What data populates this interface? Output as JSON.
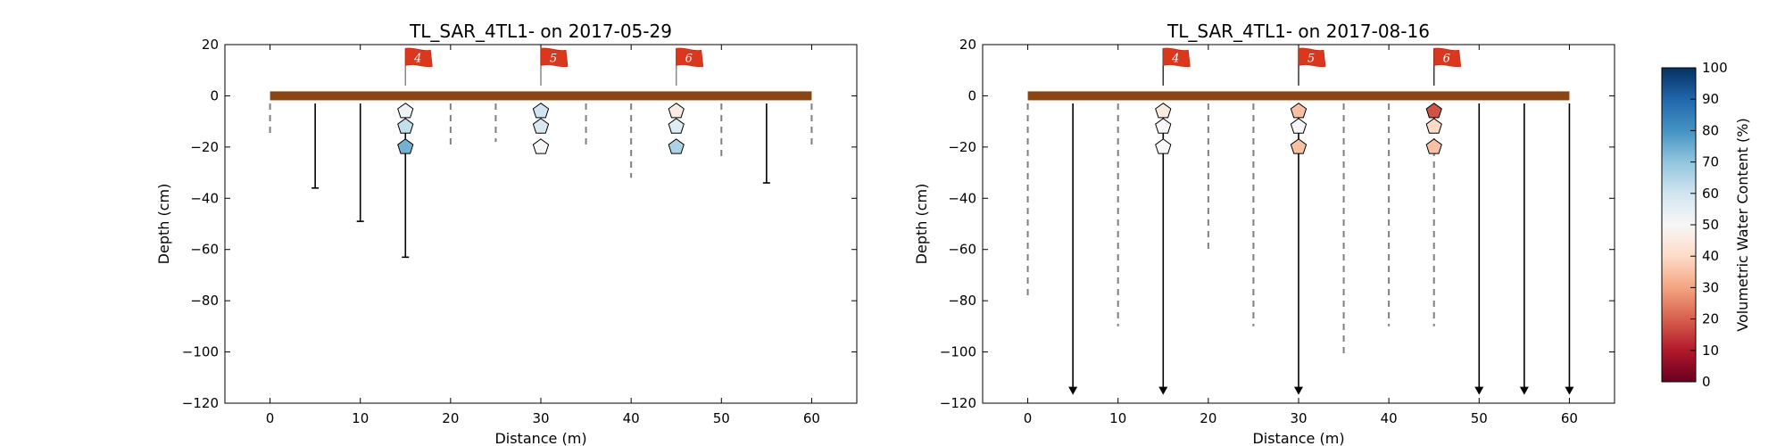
{
  "chart_data": [
    {
      "type": "scatter",
      "title": "TL_SAR_4TL1-  on 2017-05-29",
      "xlabel": "Distance (m)",
      "ylabel": "Depth (cm)",
      "xlim": [
        -5,
        65
      ],
      "ylim": [
        -120,
        20
      ],
      "xticks": [
        "0",
        "10",
        "20",
        "30",
        "40",
        "50",
        "60"
      ],
      "yticks": [
        "20",
        "0",
        "−20",
        "−40",
        "−60",
        "−80",
        "−100",
        "−120"
      ],
      "surface": {
        "x_start": 0,
        "x_end": 60,
        "depth": 0,
        "color": "#8B4513"
      },
      "flags": [
        {
          "x": 15,
          "label": "4"
        },
        {
          "x": 30,
          "label": "5"
        },
        {
          "x": 45,
          "label": "6"
        }
      ],
      "dashed_probes": [
        {
          "x": 0,
          "depth": -15
        },
        {
          "x": 20,
          "depth": -21
        },
        {
          "x": 25,
          "depth": -18
        },
        {
          "x": 35,
          "depth": -21
        },
        {
          "x": 40,
          "depth": -32
        },
        {
          "x": 50,
          "depth": -24
        },
        {
          "x": 60,
          "depth": -21
        }
      ],
      "solid_probes": [
        {
          "x": 5,
          "depth": -36,
          "arrow": false
        },
        {
          "x": 10,
          "depth": -49,
          "arrow": false
        },
        {
          "x": 15,
          "depth": -63,
          "arrow": false
        },
        {
          "x": 55,
          "depth": -34,
          "arrow": false
        }
      ],
      "moisture_points": [
        {
          "x": 15,
          "depth": -6,
          "vwc": 52
        },
        {
          "x": 15,
          "depth": -12,
          "vwc": 62
        },
        {
          "x": 15,
          "depth": -20,
          "vwc": 74
        },
        {
          "x": 30,
          "depth": -6,
          "vwc": 60
        },
        {
          "x": 30,
          "depth": -12,
          "vwc": 58
        },
        {
          "x": 30,
          "depth": -20,
          "vwc": 50
        },
        {
          "x": 45,
          "depth": -6,
          "vwc": 46
        },
        {
          "x": 45,
          "depth": -12,
          "vwc": 56
        },
        {
          "x": 45,
          "depth": -20,
          "vwc": 66
        }
      ]
    },
    {
      "type": "scatter",
      "title": "TL_SAR_4TL1-  on 2017-08-16",
      "xlabel": "Distance (m)",
      "ylabel": "Depth (cm)",
      "xlim": [
        -5,
        65
      ],
      "ylim": [
        -120,
        20
      ],
      "xticks": [
        "0",
        "10",
        "20",
        "30",
        "40",
        "50",
        "60"
      ],
      "yticks": [
        "20",
        "0",
        "−20",
        "−40",
        "−60",
        "−80",
        "−100",
        "−120"
      ],
      "surface": {
        "x_start": 0,
        "x_end": 60,
        "depth": 0,
        "color": "#8B4513"
      },
      "flags": [
        {
          "x": 15,
          "label": "4"
        },
        {
          "x": 30,
          "label": "5"
        },
        {
          "x": 45,
          "label": "6"
        }
      ],
      "dashed_probes": [
        {
          "x": 0,
          "depth": -79
        },
        {
          "x": 10,
          "depth": -90
        },
        {
          "x": 20,
          "depth": -61
        },
        {
          "x": 25,
          "depth": -90
        },
        {
          "x": 35,
          "depth": -102
        },
        {
          "x": 40,
          "depth": -90
        },
        {
          "x": 45,
          "depth": -90
        }
      ],
      "solid_probes": [
        {
          "x": 5,
          "depth": -115,
          "arrow": true
        },
        {
          "x": 15,
          "depth": -115,
          "arrow": true
        },
        {
          "x": 30,
          "depth": -115,
          "arrow": true
        },
        {
          "x": 50,
          "depth": -115,
          "arrow": true
        },
        {
          "x": 55,
          "depth": -115,
          "arrow": true
        },
        {
          "x": 60,
          "depth": -115,
          "arrow": true
        }
      ],
      "moisture_points": [
        {
          "x": 15,
          "depth": -6,
          "vwc": 45
        },
        {
          "x": 15,
          "depth": -12,
          "vwc": 50
        },
        {
          "x": 15,
          "depth": -20,
          "vwc": 50
        },
        {
          "x": 30,
          "depth": -6,
          "vwc": 35
        },
        {
          "x": 30,
          "depth": -12,
          "vwc": 50
        },
        {
          "x": 30,
          "depth": -20,
          "vwc": 35
        },
        {
          "x": 45,
          "depth": -6,
          "vwc": 18
        },
        {
          "x": 45,
          "depth": -12,
          "vwc": 40
        },
        {
          "x": 45,
          "depth": -20,
          "vwc": 35
        }
      ]
    }
  ],
  "colorbar": {
    "label": "Volumetric Water Content (%)",
    "min": 0,
    "max": 100,
    "ticks": [
      "0",
      "10",
      "20",
      "30",
      "40",
      "50",
      "60",
      "70",
      "80",
      "90",
      "100"
    ],
    "colormap": "RdBu"
  }
}
